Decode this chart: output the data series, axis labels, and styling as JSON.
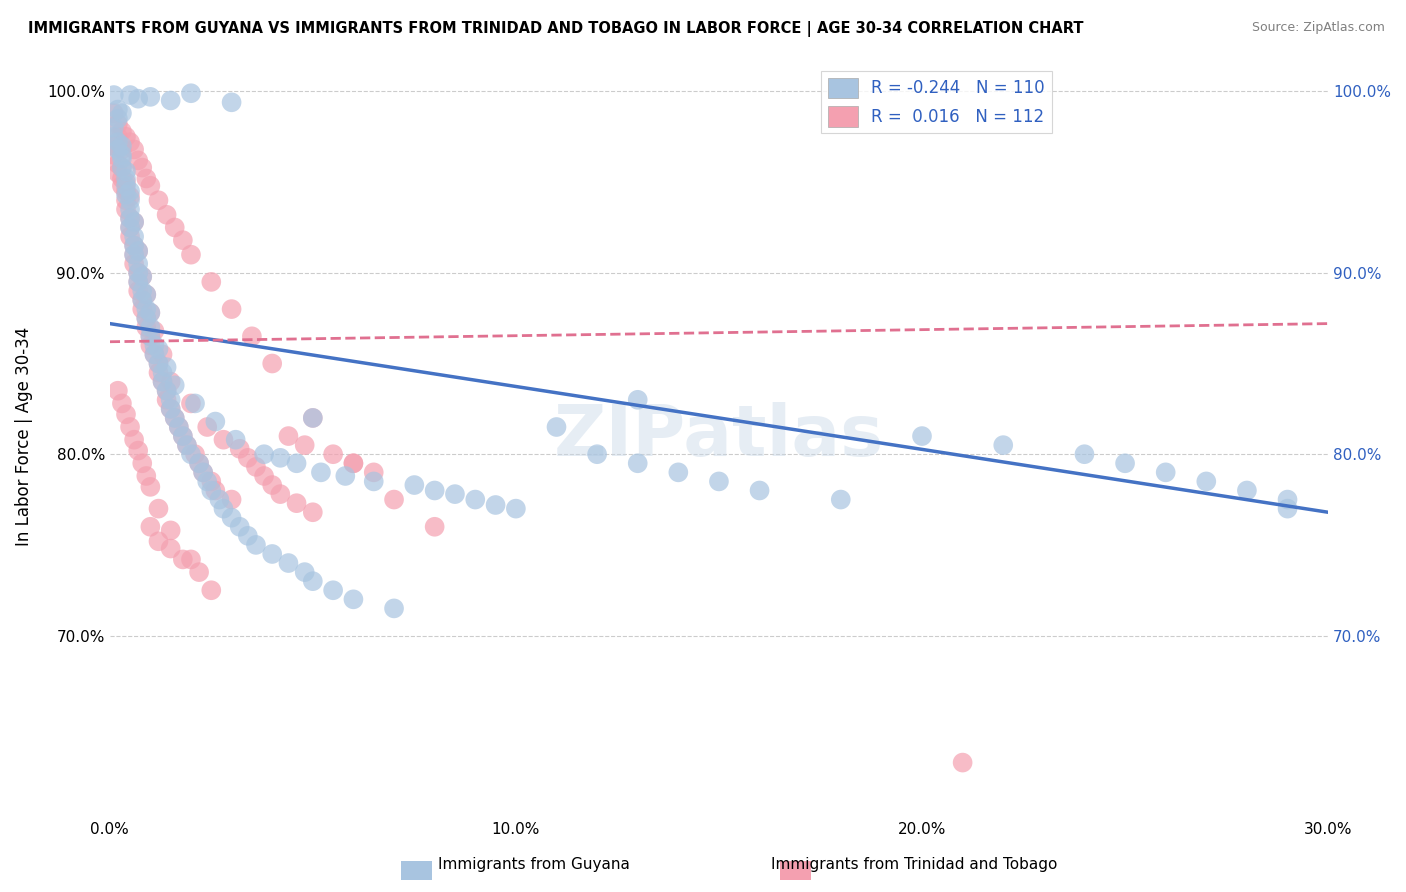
{
  "title": "IMMIGRANTS FROM GUYANA VS IMMIGRANTS FROM TRINIDAD AND TOBAGO IN LABOR FORCE | AGE 30-34 CORRELATION CHART",
  "source": "Source: ZipAtlas.com",
  "ylabel": "In Labor Force | Age 30-34",
  "xlim": [
    0.0,
    0.3
  ],
  "ylim": [
    0.6,
    1.02
  ],
  "ytick_labels": [
    "70.0%",
    "80.0%",
    "90.0%",
    "100.0%"
  ],
  "ytick_vals": [
    0.7,
    0.8,
    0.9,
    1.0
  ],
  "xtick_labels": [
    "0.0%",
    "10.0%",
    "20.0%",
    "30.0%"
  ],
  "xtick_vals": [
    0.0,
    0.1,
    0.2,
    0.3
  ],
  "guyana_R": -0.244,
  "guyana_N": 110,
  "trinidad_R": 0.016,
  "trinidad_N": 112,
  "guyana_color": "#a8c4e0",
  "trinidad_color": "#f4a0b0",
  "guyana_line_color": "#4472c4",
  "trinidad_line_color": "#e07090",
  "watermark": "ZIPatlas",
  "legend_label_guyana": "Immigrants from Guyana",
  "legend_label_trinidad": "Immigrants from Trinidad and Tobago",
  "guyana_scatter_x": [
    0.001,
    0.001,
    0.002,
    0.002,
    0.002,
    0.003,
    0.003,
    0.003,
    0.003,
    0.004,
    0.004,
    0.004,
    0.004,
    0.005,
    0.005,
    0.005,
    0.005,
    0.005,
    0.006,
    0.006,
    0.006,
    0.006,
    0.007,
    0.007,
    0.007,
    0.007,
    0.008,
    0.008,
    0.008,
    0.009,
    0.009,
    0.009,
    0.01,
    0.01,
    0.01,
    0.011,
    0.011,
    0.012,
    0.012,
    0.013,
    0.013,
    0.014,
    0.014,
    0.015,
    0.015,
    0.016,
    0.016,
    0.017,
    0.018,
    0.019,
    0.02,
    0.021,
    0.022,
    0.023,
    0.024,
    0.025,
    0.026,
    0.027,
    0.028,
    0.03,
    0.031,
    0.032,
    0.034,
    0.036,
    0.038,
    0.04,
    0.042,
    0.044,
    0.046,
    0.048,
    0.05,
    0.052,
    0.055,
    0.058,
    0.06,
    0.065,
    0.07,
    0.075,
    0.08,
    0.085,
    0.09,
    0.095,
    0.1,
    0.11,
    0.12,
    0.13,
    0.14,
    0.15,
    0.16,
    0.18,
    0.2,
    0.22,
    0.24,
    0.25,
    0.26,
    0.27,
    0.28,
    0.29,
    0.001,
    0.002,
    0.003,
    0.005,
    0.007,
    0.01,
    0.015,
    0.02,
    0.03,
    0.05,
    0.13,
    0.29
  ],
  "guyana_scatter_y": [
    0.975,
    0.98,
    0.972,
    0.968,
    0.985,
    0.965,
    0.97,
    0.958,
    0.963,
    0.952,
    0.948,
    0.956,
    0.943,
    0.94,
    0.935,
    0.945,
    0.93,
    0.925,
    0.928,
    0.92,
    0.915,
    0.91,
    0.905,
    0.912,
    0.9,
    0.895,
    0.89,
    0.898,
    0.885,
    0.88,
    0.875,
    0.888,
    0.87,
    0.865,
    0.878,
    0.86,
    0.855,
    0.85,
    0.858,
    0.845,
    0.84,
    0.835,
    0.848,
    0.83,
    0.825,
    0.82,
    0.838,
    0.815,
    0.81,
    0.805,
    0.8,
    0.828,
    0.795,
    0.79,
    0.785,
    0.78,
    0.818,
    0.775,
    0.77,
    0.765,
    0.808,
    0.76,
    0.755,
    0.75,
    0.8,
    0.745,
    0.798,
    0.74,
    0.795,
    0.735,
    0.73,
    0.79,
    0.725,
    0.788,
    0.72,
    0.785,
    0.715,
    0.783,
    0.78,
    0.778,
    0.775,
    0.772,
    0.77,
    0.815,
    0.8,
    0.795,
    0.79,
    0.785,
    0.78,
    0.775,
    0.81,
    0.805,
    0.8,
    0.795,
    0.79,
    0.785,
    0.78,
    0.775,
    0.998,
    0.99,
    0.988,
    0.998,
    0.996,
    0.997,
    0.995,
    0.999,
    0.994,
    0.82,
    0.83,
    0.77
  ],
  "trinidad_scatter_x": [
    0.001,
    0.001,
    0.002,
    0.002,
    0.002,
    0.003,
    0.003,
    0.003,
    0.003,
    0.004,
    0.004,
    0.004,
    0.004,
    0.005,
    0.005,
    0.005,
    0.005,
    0.006,
    0.006,
    0.006,
    0.006,
    0.007,
    0.007,
    0.007,
    0.007,
    0.008,
    0.008,
    0.008,
    0.009,
    0.009,
    0.009,
    0.01,
    0.01,
    0.01,
    0.011,
    0.011,
    0.012,
    0.012,
    0.013,
    0.013,
    0.014,
    0.014,
    0.015,
    0.015,
    0.016,
    0.017,
    0.018,
    0.019,
    0.02,
    0.021,
    0.022,
    0.023,
    0.024,
    0.025,
    0.026,
    0.028,
    0.03,
    0.032,
    0.034,
    0.036,
    0.038,
    0.04,
    0.042,
    0.044,
    0.046,
    0.048,
    0.05,
    0.055,
    0.06,
    0.065,
    0.001,
    0.002,
    0.003,
    0.004,
    0.005,
    0.006,
    0.007,
    0.008,
    0.009,
    0.01,
    0.012,
    0.014,
    0.016,
    0.018,
    0.02,
    0.025,
    0.03,
    0.035,
    0.04,
    0.05,
    0.06,
    0.07,
    0.08,
    0.01,
    0.012,
    0.015,
    0.018,
    0.002,
    0.003,
    0.004,
    0.005,
    0.006,
    0.007,
    0.008,
    0.009,
    0.01,
    0.012,
    0.015,
    0.02,
    0.022,
    0.025,
    0.21
  ],
  "trinidad_scatter_y": [
    0.97,
    0.965,
    0.96,
    0.975,
    0.955,
    0.968,
    0.952,
    0.948,
    0.958,
    0.945,
    0.94,
    0.95,
    0.935,
    0.93,
    0.942,
    0.925,
    0.92,
    0.915,
    0.928,
    0.91,
    0.905,
    0.9,
    0.912,
    0.895,
    0.89,
    0.885,
    0.898,
    0.88,
    0.875,
    0.888,
    0.87,
    0.865,
    0.878,
    0.86,
    0.855,
    0.868,
    0.85,
    0.845,
    0.84,
    0.855,
    0.835,
    0.83,
    0.825,
    0.84,
    0.82,
    0.815,
    0.81,
    0.805,
    0.828,
    0.8,
    0.795,
    0.79,
    0.815,
    0.785,
    0.78,
    0.808,
    0.775,
    0.803,
    0.798,
    0.793,
    0.788,
    0.783,
    0.778,
    0.81,
    0.773,
    0.805,
    0.768,
    0.8,
    0.795,
    0.79,
    0.988,
    0.982,
    0.978,
    0.975,
    0.972,
    0.968,
    0.962,
    0.958,
    0.952,
    0.948,
    0.94,
    0.932,
    0.925,
    0.918,
    0.91,
    0.895,
    0.88,
    0.865,
    0.85,
    0.82,
    0.795,
    0.775,
    0.76,
    0.76,
    0.752,
    0.748,
    0.742,
    0.835,
    0.828,
    0.822,
    0.815,
    0.808,
    0.802,
    0.795,
    0.788,
    0.782,
    0.77,
    0.758,
    0.742,
    0.735,
    0.725,
    0.63
  ],
  "guyana_regline_x": [
    0.0,
    0.3
  ],
  "guyana_regline_y": [
    0.872,
    0.768
  ],
  "trinidad_regline_x": [
    0.0,
    0.3
  ],
  "trinidad_regline_y": [
    0.862,
    0.872
  ]
}
